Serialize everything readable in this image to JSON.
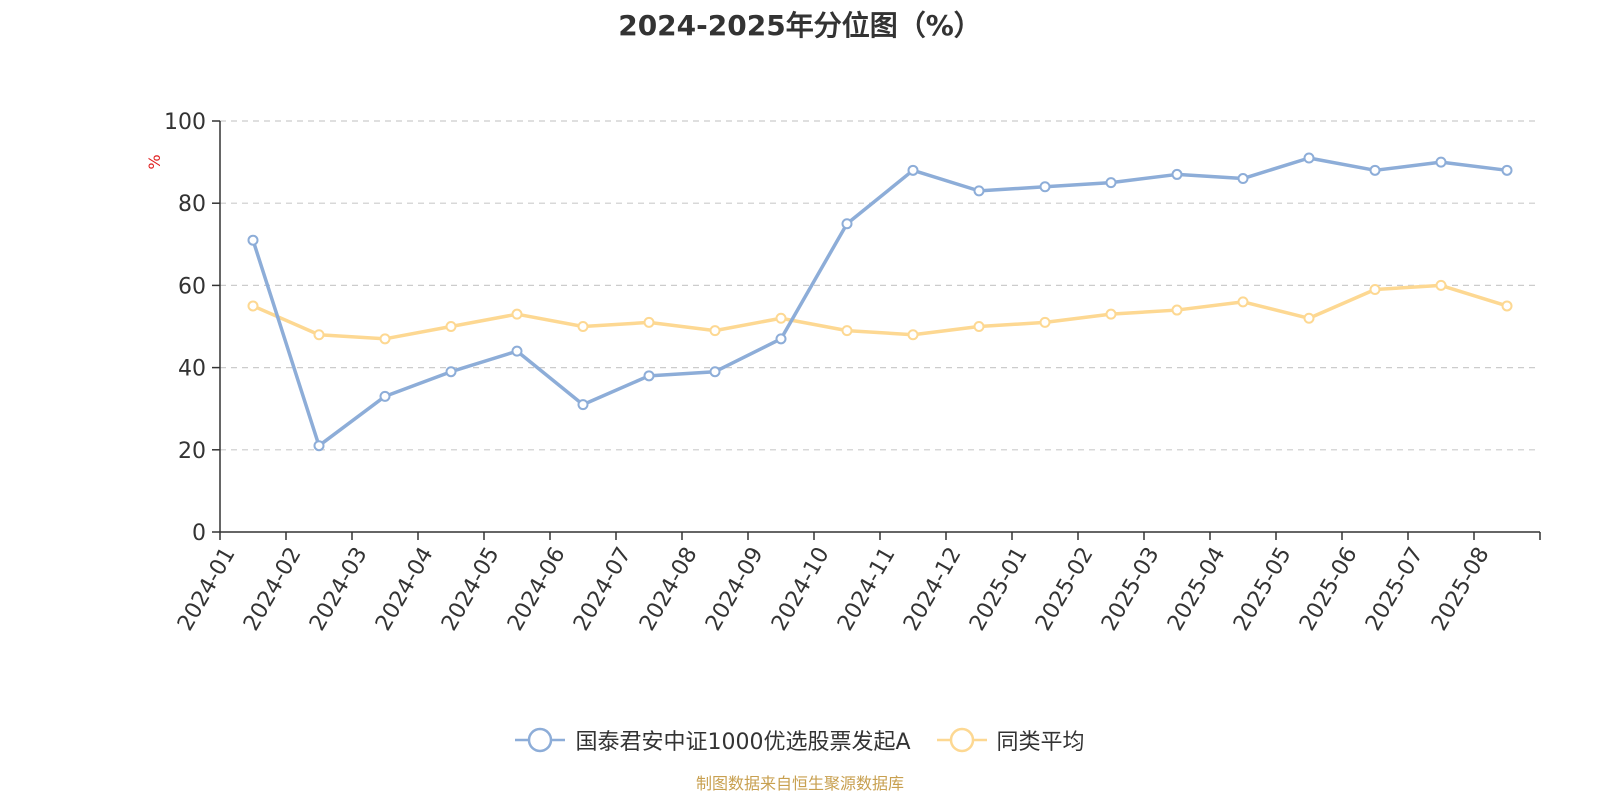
{
  "title": "2024-2025年分位图（%）",
  "footer": "制图数据来自恒生聚源数据库",
  "colors": {
    "series_1": "#8dadd8",
    "series_2": "#fdd892",
    "axis": "#333333",
    "grid": "#cccccc",
    "unit_label": "#e02020",
    "footer": "#c8a050"
  },
  "chart_data": {
    "type": "line",
    "title": "2024-2025年分位图（%）",
    "ylabel": "%",
    "xlabel": "",
    "ylim": [
      0,
      100
    ],
    "yticks": [
      0,
      20,
      40,
      60,
      80,
      100
    ],
    "grid": true,
    "legend_position": "bottom-center",
    "categories": [
      "2024-01",
      "2024-02",
      "2024-03",
      "2024-04",
      "2024-05",
      "2024-06",
      "2024-07",
      "2024-08",
      "2024-09",
      "2024-10",
      "2024-11",
      "2024-12",
      "2025-01",
      "2025-02",
      "2025-03",
      "2025-04",
      "2025-05",
      "2025-06",
      "2025-07",
      "2025-08"
    ],
    "series": [
      {
        "name": "国泰君安中证1000优选股票发起A",
        "color": "#8dadd8",
        "values": [
          71,
          21,
          33,
          39,
          44,
          31,
          38,
          39,
          47,
          75,
          88,
          83,
          84,
          85,
          87,
          86,
          91,
          88,
          90,
          88
        ]
      },
      {
        "name": "同类平均",
        "color": "#fdd892",
        "values": [
          55,
          48,
          47,
          50,
          53,
          50,
          51,
          49,
          52,
          49,
          48,
          50,
          51,
          53,
          54,
          56,
          52,
          59,
          60,
          55
        ]
      }
    ]
  }
}
